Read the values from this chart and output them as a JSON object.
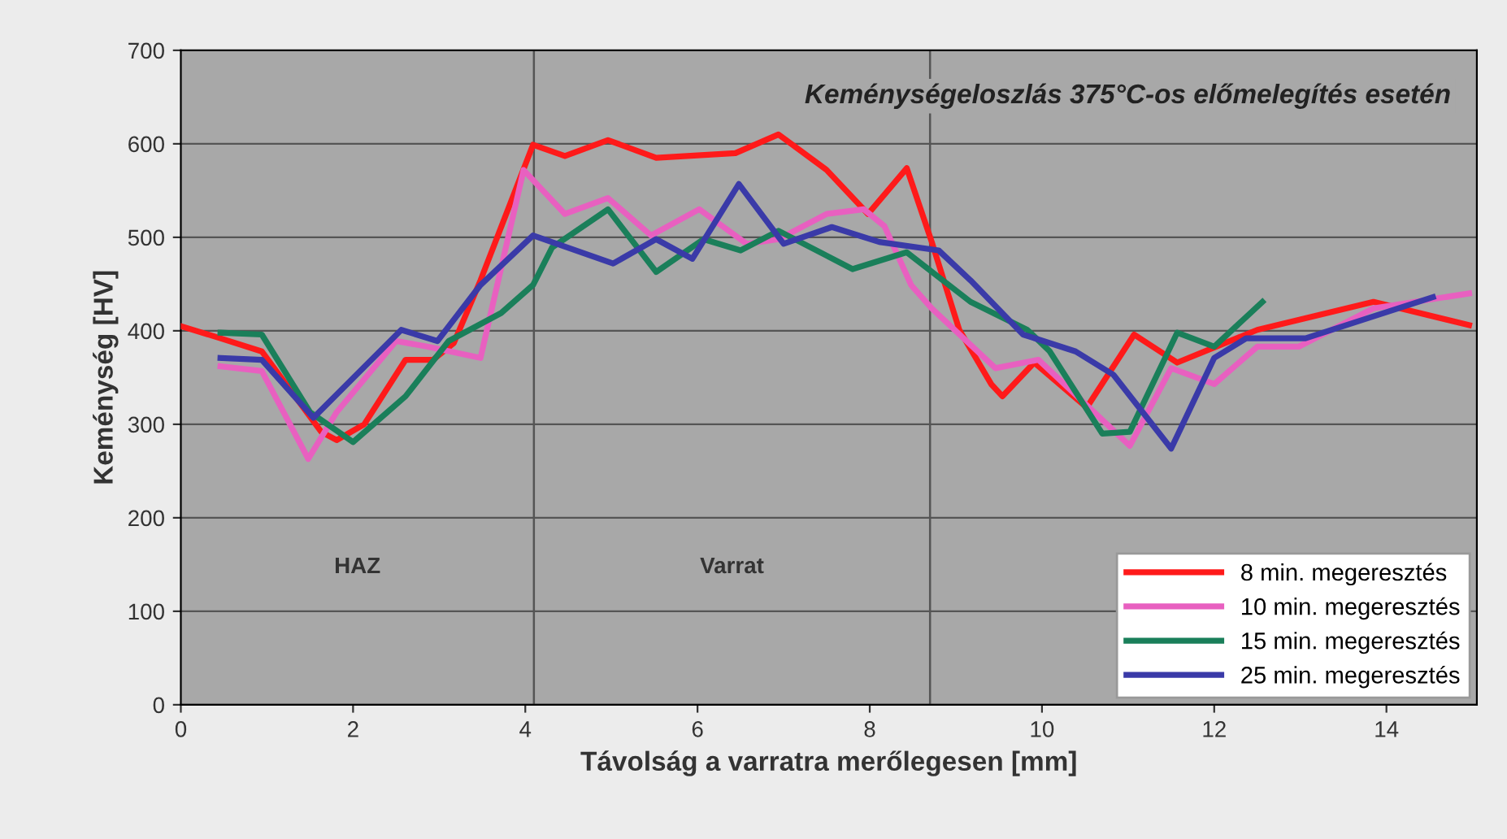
{
  "chart_data": {
    "type": "line",
    "title": "Keménységeloszlás 375°C-os előmelegítés esetén",
    "xlabel": "Távolság a varratra merőlegesen [mm]",
    "ylabel": "Keménység [HV]",
    "xlim": [
      0,
      15.05
    ],
    "xticks": [
      0,
      2,
      4,
      6,
      8,
      10,
      12,
      14
    ],
    "ylim": [
      0,
      700
    ],
    "yticks": [
      0,
      100,
      200,
      300,
      400,
      500,
      600,
      700
    ],
    "grid": "y",
    "legend": "bottom right",
    "marker": "none",
    "line_style": "solid",
    "ref_lines": [
      {
        "axis": "x",
        "value": 4.1,
        "color": "#555555"
      },
      {
        "axis": "x",
        "value": 8.7,
        "color": "#555555"
      }
    ],
    "annotations": [
      "HAZ",
      "Varrat"
    ],
    "series": [
      {
        "name": "8 min. megeresztés",
        "color": "#ff1a1a",
        "x": [
          0,
          0.46,
          0.94,
          1.63,
          1.81,
          2.13,
          2.61,
          2.93,
          3.17,
          3.48,
          4.09,
          4.46,
          4.96,
          5.52,
          6.44,
          6.94,
          7.5,
          7.98,
          8.43,
          8.72,
          9.04,
          9.41,
          9.54,
          9.91,
          10.52,
          11.07,
          11.57,
          12.5,
          13.85,
          14.96
        ],
        "values": [
          405,
          392,
          378,
          292,
          283,
          300,
          369,
          369,
          387,
          454,
          599,
          587,
          604,
          585,
          590,
          610,
          572,
          525,
          574,
          495,
          401,
          343,
          330,
          366,
          318,
          396,
          366,
          401,
          431,
          406
        ]
      },
      {
        "name": "10 min. megeresztés",
        "color": "#e860c0",
        "x": [
          0.46,
          0.94,
          1.48,
          1.81,
          2.5,
          2.87,
          3.48,
          3.98,
          4.46,
          4.96,
          5.46,
          6.02,
          6.57,
          6.94,
          7.5,
          7.93,
          8.17,
          8.48,
          8.72,
          9.46,
          9.96,
          11.02,
          11.5,
          12.0,
          12.5,
          12.98,
          13.85,
          14.96
        ],
        "values": [
          362,
          357,
          263,
          313,
          389,
          383,
          371,
          572,
          525,
          542,
          502,
          530,
          493,
          498,
          525,
          530,
          512,
          449,
          424,
          360,
          369,
          277,
          360,
          343,
          383,
          383,
          424,
          440
        ]
      },
      {
        "name": "15 min. megeresztés",
        "color": "#1a7f5a",
        "x": [
          0.46,
          0.94,
          1.5,
          2.0,
          2.61,
          3.11,
          3.72,
          4.09,
          4.31,
          4.96,
          5.52,
          6.07,
          6.5,
          6.94,
          7.8,
          8.43,
          9.17,
          9.83,
          10.09,
          10.7,
          11.02,
          11.57,
          12.0,
          12.56
        ],
        "values": [
          398,
          396,
          313,
          281,
          330,
          389,
          419,
          449,
          489,
          530,
          463,
          498,
          486,
          507,
          466,
          484,
          431,
          401,
          378,
          290,
          292,
          398,
          383,
          431
        ]
      },
      {
        "name": "25 min. megeresztés",
        "color": "#3a3aa8",
        "x": [
          0.46,
          0.94,
          1.54,
          2.56,
          2.98,
          3.48,
          4.09,
          5.02,
          5.52,
          5.94,
          6.48,
          7.0,
          7.56,
          8.11,
          8.8,
          9.17,
          9.78,
          10.39,
          10.83,
          11.5,
          12.0,
          12.37,
          13.06,
          14.54
        ],
        "values": [
          371,
          369,
          307,
          401,
          389,
          449,
          502,
          472,
          498,
          477,
          557,
          493,
          511,
          495,
          486,
          454,
          396,
          378,
          353,
          274,
          371,
          392,
          392,
          436
        ]
      }
    ]
  }
}
